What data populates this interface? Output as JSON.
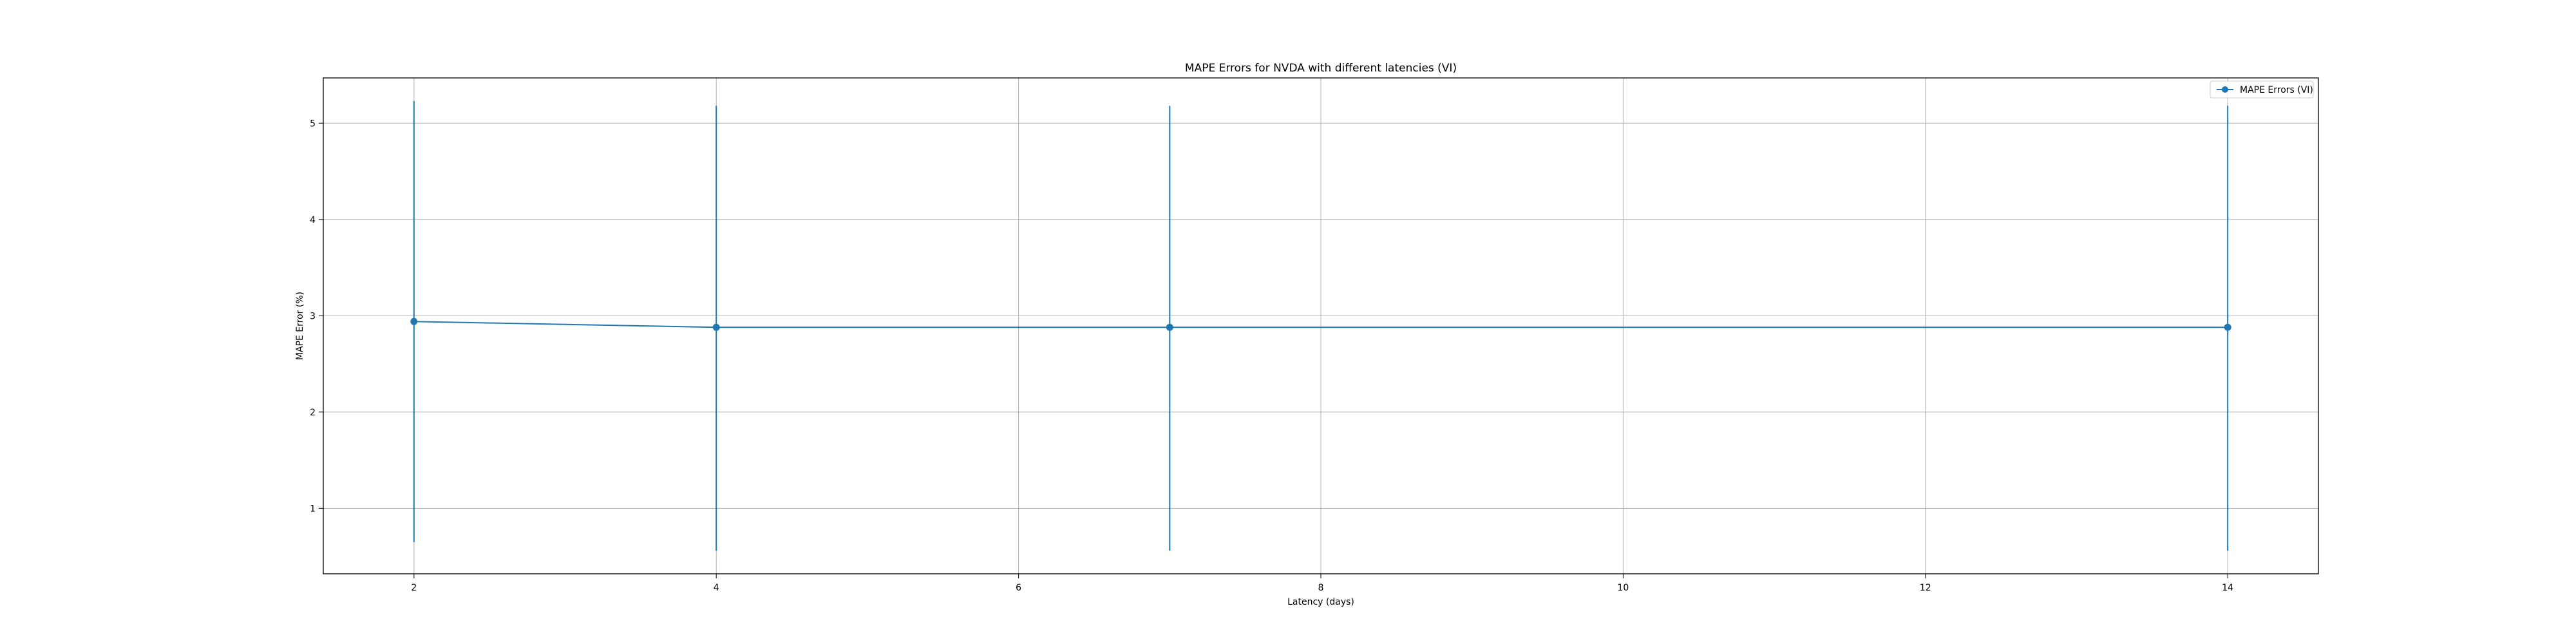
{
  "chart_data": {
    "type": "line",
    "title": "MAPE Errors for NVDA with different latencies (VI)",
    "xlabel": "Latency (days)",
    "ylabel": "MAPE Error (%)",
    "x_ticks": [
      2,
      4,
      6,
      8,
      10,
      12,
      14
    ],
    "y_ticks": [
      1,
      2,
      3,
      4,
      5
    ],
    "xlim": [
      1.4,
      14.6
    ],
    "ylim": [
      0.32,
      5.47
    ],
    "grid": true,
    "legend_position": "top-right",
    "series": [
      {
        "name": "MAPE Errors (VI)",
        "color": "#1f77b4",
        "marker": "circle",
        "points": [
          {
            "x": 2,
            "y": 2.94,
            "error_low": 0.65,
            "error_high": 5.23
          },
          {
            "x": 4,
            "y": 2.88,
            "error_low": 0.56,
            "error_high": 5.18
          },
          {
            "x": 7,
            "y": 2.88,
            "error_low": 0.56,
            "error_high": 5.18
          },
          {
            "x": 14,
            "y": 2.88,
            "error_low": 0.56,
            "error_high": 5.18
          }
        ]
      }
    ]
  }
}
